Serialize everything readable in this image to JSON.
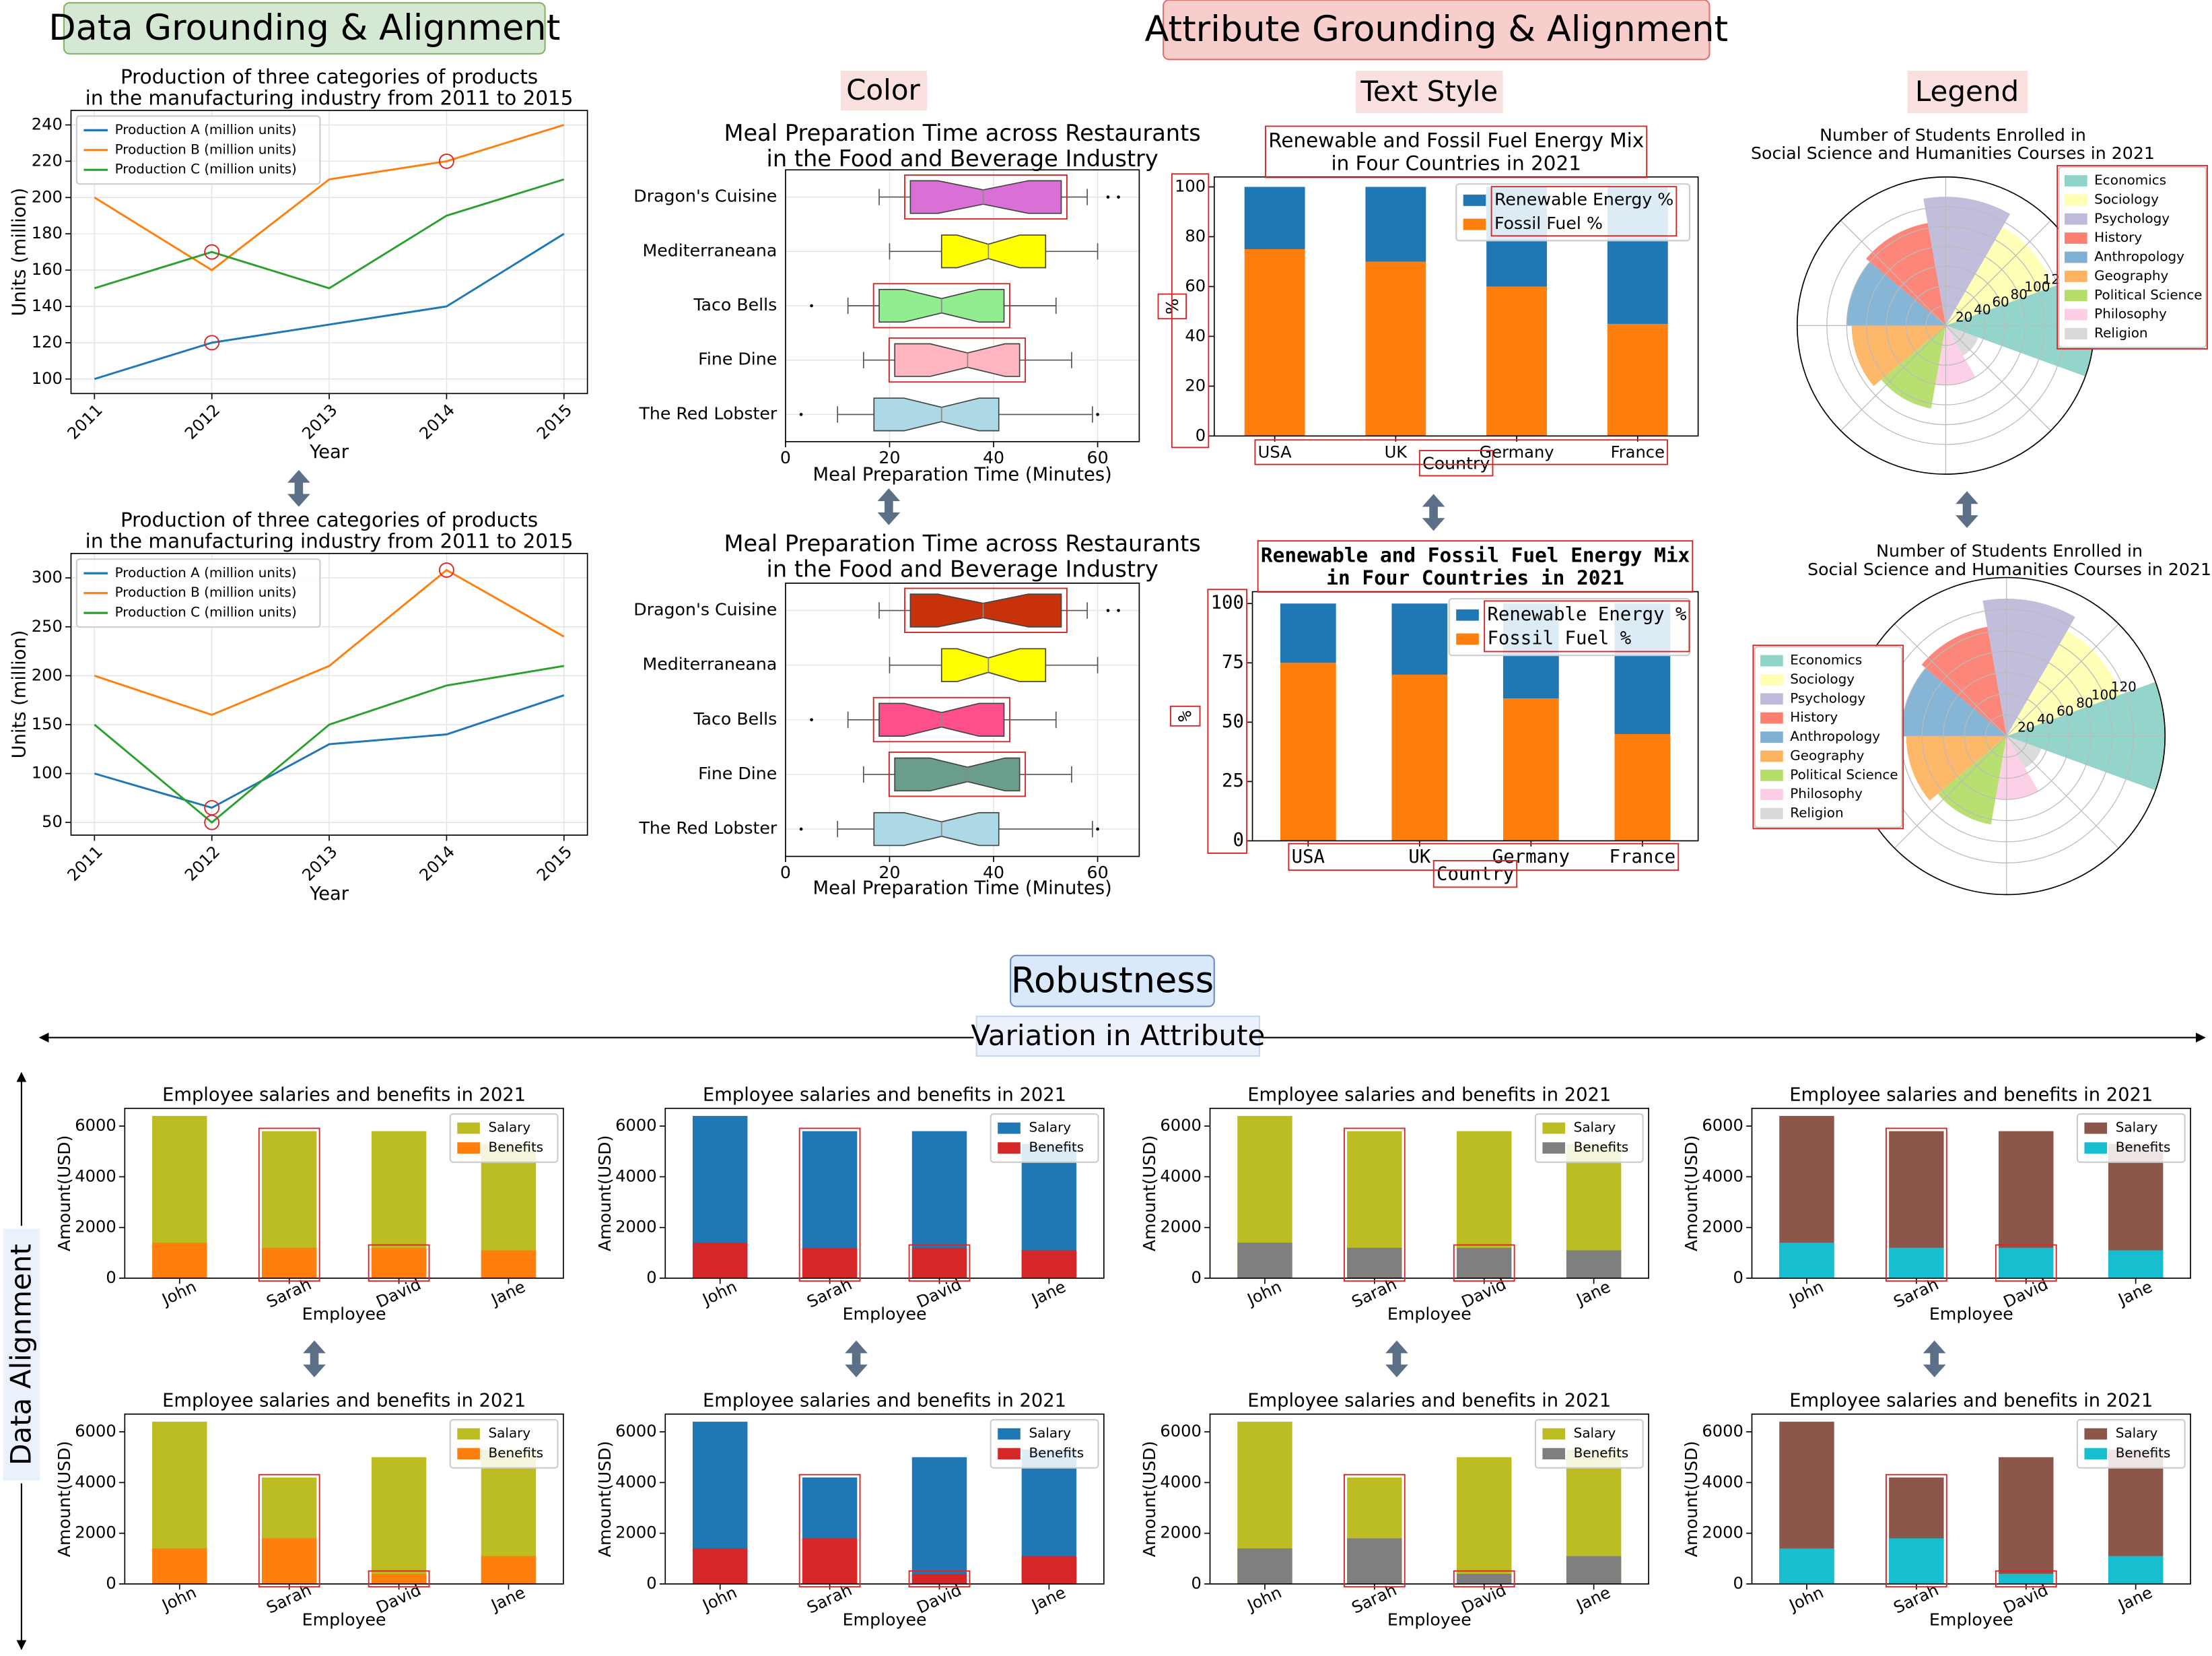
{
  "headings": {
    "data_grounding": "Data Grounding & Alignment",
    "attribute_grounding": "Attribute Grounding & Alignment",
    "color": "Color",
    "text_style": "Text Style",
    "legend": "Legend",
    "robustness": "Robustness",
    "variation": "Variation in Attribute",
    "data_alignment": "Data Alignment"
  },
  "chart_data": [
    {
      "type": "line",
      "title": [
        "Production of three categories of products",
        "in the manufacturing industry from 2011 to 2015"
      ],
      "x": [
        2011,
        2012,
        2013,
        2014,
        2015
      ],
      "xlim": [
        2010.8,
        2015.2
      ],
      "xticks": [
        2011,
        2012,
        2013,
        2014,
        2015
      ],
      "ylim": [
        92,
        248
      ],
      "yticks": [
        100,
        120,
        140,
        160,
        180,
        200,
        220,
        240
      ],
      "xlabel": "Year",
      "ylabel": "Units (million)",
      "grid": true,
      "legend": "upper left",
      "series": [
        {
          "name": "Production A (million units)",
          "color": "#1f77b4",
          "values": [
            100,
            120,
            130,
            140,
            180
          ]
        },
        {
          "name": "Production B (million units)",
          "color": "#ff7f0e",
          "values": [
            200,
            160,
            210,
            220,
            240
          ]
        },
        {
          "name": "Production C (million units)",
          "color": "#2ca02c",
          "values": [
            150,
            170,
            150,
            190,
            210
          ]
        }
      ]
    },
    {
      "type": "line",
      "title": [
        "Production of three categories of products",
        "in the manufacturing industry from 2011 to 2015"
      ],
      "x": [
        2011,
        2012,
        2013,
        2014,
        2015
      ],
      "xlim": [
        2010.8,
        2015.2
      ],
      "xticks": [
        2011,
        2012,
        2013,
        2014,
        2015
      ],
      "ylim": [
        37,
        325
      ],
      "yticks": [
        50,
        100,
        150,
        200,
        250,
        300
      ],
      "xlabel": "Year",
      "ylabel": "Units (million)",
      "grid": true,
      "legend": "upper left",
      "series": [
        {
          "name": "Production A (million units)",
          "color": "#1f77b4",
          "values": [
            100,
            65,
            130,
            140,
            180
          ]
        },
        {
          "name": "Production B (million units)",
          "color": "#ff7f0e",
          "values": [
            200,
            160,
            210,
            308,
            240
          ]
        },
        {
          "name": "Production C (million units)",
          "color": "#2ca02c",
          "values": [
            150,
            50,
            150,
            190,
            210
          ]
        }
      ]
    },
    {
      "type": "box",
      "title": [
        "Meal Preparation Time across Restaurants",
        "in the Food and Beverage Industry"
      ],
      "categories": [
        "Dragon's Cuisine",
        "Mediterraneana",
        "Taco Bells",
        "Fine Dine",
        "The Red Lobster"
      ],
      "colors": [
        "#da70d6",
        "#ffff00",
        "#90ee90",
        "#ffb6c1",
        "#add8e6"
      ],
      "xlim": [
        0,
        68
      ],
      "xticks": [
        0,
        20,
        40,
        60
      ],
      "xlabel": "Meal Preparation Time (Minutes)",
      "grid": true,
      "boxes": [
        {
          "whislo": 18,
          "q1": 24,
          "med": 38,
          "q3": 53,
          "whishi": 58,
          "fliers": [
            62,
            64
          ]
        },
        {
          "whislo": 20,
          "q1": 30,
          "med": 39,
          "q3": 50,
          "whishi": 60,
          "fliers": []
        },
        {
          "whislo": 12,
          "q1": 18,
          "med": 30,
          "q3": 42,
          "whishi": 52,
          "fliers": [
            5
          ]
        },
        {
          "whislo": 15,
          "q1": 21,
          "med": 35,
          "q3": 45,
          "whishi": 55,
          "fliers": []
        },
        {
          "whislo": 10,
          "q1": 17,
          "med": 30,
          "q3": 41,
          "whishi": 59,
          "fliers": [
            3,
            60
          ]
        }
      ]
    },
    {
      "type": "box",
      "title": [
        "Meal Preparation Time across Restaurants",
        "in the Food and Beverage Industry"
      ],
      "categories": [
        "Dragon's Cuisine",
        "Mediterraneana",
        "Taco Bells",
        "Fine Dine",
        "The Red Lobster"
      ],
      "colors": [
        "#c8320a",
        "#ffff00",
        "#ff4f8b",
        "#6a9e8b",
        "#add8e6"
      ],
      "xlim": [
        0,
        68
      ],
      "xticks": [
        0,
        20,
        40,
        60
      ],
      "xlabel": "Meal Preparation Time (Minutes)",
      "grid": true,
      "boxes": [
        {
          "whislo": 18,
          "q1": 24,
          "med": 38,
          "q3": 53,
          "whishi": 58,
          "fliers": [
            62,
            64
          ]
        },
        {
          "whislo": 20,
          "q1": 30,
          "med": 39,
          "q3": 50,
          "whishi": 60,
          "fliers": []
        },
        {
          "whislo": 12,
          "q1": 18,
          "med": 30,
          "q3": 42,
          "whishi": 52,
          "fliers": [
            5
          ]
        },
        {
          "whislo": 15,
          "q1": 21,
          "med": 35,
          "q3": 45,
          "whishi": 55,
          "fliers": []
        },
        {
          "whislo": 10,
          "q1": 17,
          "med": 30,
          "q3": 41,
          "whishi": 59,
          "fliers": [
            3,
            60
          ]
        }
      ]
    },
    {
      "type": "stacked_bar",
      "title": [
        "Renewable and Fossil Fuel Energy Mix",
        "in Four Countries in 2021"
      ],
      "categories": [
        "USA",
        "UK",
        "Germany",
        "France"
      ],
      "ylim": [
        0,
        104
      ],
      "yticks": [
        0,
        20,
        40,
        60,
        80,
        100
      ],
      "xlabel": "Country",
      "ylabel": "%",
      "grid": false,
      "legend": "upper right",
      "series": [
        {
          "name": "Renewable Energy %",
          "color": "#1f77b4",
          "values": [
            25,
            30,
            40,
            55
          ]
        },
        {
          "name": "Fossil Fuel %",
          "color": "#ff7f0e",
          "values": [
            75,
            70,
            60,
            45
          ]
        }
      ]
    },
    {
      "type": "stacked_bar",
      "title": [
        "Renewable and Fossil Fuel Energy Mix",
        "in Four Countries in 2021"
      ],
      "categories": [
        "USA",
        "UK",
        "Germany",
        "France"
      ],
      "ylim": [
        0,
        105
      ],
      "yticks": [
        0,
        25,
        50,
        75,
        100
      ],
      "xlabel": "Country",
      "ylabel": "%",
      "grid": false,
      "legend": "upper right",
      "series": [
        {
          "name": "Renewable Energy %",
          "color": "#1f77b4",
          "values": [
            25,
            30,
            40,
            55
          ]
        },
        {
          "name": "Fossil Fuel %",
          "color": "#ff7f0e",
          "values": [
            75,
            70,
            60,
            45
          ]
        }
      ]
    },
    {
      "type": "polar",
      "title": [
        "Number of Students Enrolled in",
        "Social Science and Humanities Courses in 2021"
      ],
      "categories": [
        "Economics",
        "Sociology",
        "Psychology",
        "History",
        "Anthropology",
        "Geography",
        "Political Science",
        "Philosophy",
        "Religion"
      ],
      "values": [
        150,
        115,
        130,
        105,
        100,
        95,
        85,
        60,
        35
      ],
      "colors": [
        "#8dd3c7",
        "#ffffb3",
        "#bebada",
        "#fb8072",
        "#80b1d3",
        "#fdb462",
        "#b3de69",
        "#fccde5",
        "#d9d9d9"
      ],
      "rlim": [
        0,
        150
      ],
      "rticks": [
        20,
        40,
        60,
        80,
        100,
        120
      ],
      "legend": "right"
    },
    {
      "type": "polar",
      "title": [
        "Number of Students Enrolled in",
        "Social Science and Humanities Courses in 2021"
      ],
      "categories": [
        "Economics",
        "Sociology",
        "Psychology",
        "History",
        "Anthropology",
        "Geography",
        "Political Science",
        "Philosophy",
        "Religion"
      ],
      "values": [
        150,
        115,
        130,
        105,
        100,
        95,
        85,
        60,
        35
      ],
      "colors": [
        "#8dd3c7",
        "#ffffb3",
        "#bebada",
        "#fb8072",
        "#80b1d3",
        "#fdb462",
        "#b3de69",
        "#fccde5",
        "#d9d9d9"
      ],
      "rlim": [
        0,
        150
      ],
      "rticks": [
        20,
        40,
        60,
        80,
        100,
        120
      ],
      "legend": "left"
    },
    {
      "type": "bar",
      "title": [
        "Employee salaries and benefits in 2021"
      ],
      "categories": [
        "John",
        "Sarah",
        "David",
        "Jane"
      ],
      "ylim": [
        0,
        6700
      ],
      "yticks": [
        0,
        2000,
        4000,
        6000
      ],
      "xlabel": "Employee",
      "ylabel": "Amount(USD)",
      "grid": false,
      "legend": "upper right",
      "series": [
        {
          "name": "Salary",
          "color": "#bcbd22",
          "values": [
            6400,
            5800,
            5800,
            5300
          ]
        },
        {
          "name": "Benefits",
          "color": "#ff7f0e",
          "values": [
            1400,
            1200,
            1200,
            1100
          ]
        }
      ]
    },
    {
      "type": "bar",
      "title": [
        "Employee salaries and benefits in 2021"
      ],
      "categories": [
        "John",
        "Sarah",
        "David",
        "Jane"
      ],
      "ylim": [
        0,
        6700
      ],
      "yticks": [
        0,
        2000,
        4000,
        6000
      ],
      "xlabel": "Employee",
      "ylabel": "Amount(USD)",
      "grid": false,
      "legend": "upper right",
      "series": [
        {
          "name": "Salary",
          "color": "#1f77b4",
          "values": [
            6400,
            5800,
            5800,
            5300
          ]
        },
        {
          "name": "Benefits",
          "color": "#d62728",
          "values": [
            1400,
            1200,
            1200,
            1100
          ]
        }
      ]
    },
    {
      "type": "bar",
      "title": [
        "Employee salaries and benefits in 2021"
      ],
      "categories": [
        "John",
        "Sarah",
        "David",
        "Jane"
      ],
      "ylim": [
        0,
        6700
      ],
      "yticks": [
        0,
        2000,
        4000,
        6000
      ],
      "xlabel": "Employee",
      "ylabel": "Amount(USD)",
      "grid": false,
      "legend": "upper right",
      "series": [
        {
          "name": "Salary",
          "color": "#bcbd22",
          "values": [
            6400,
            5800,
            5800,
            5300
          ]
        },
        {
          "name": "Benefits",
          "color": "#7f7f7f",
          "values": [
            1400,
            1200,
            1200,
            1100
          ]
        }
      ]
    },
    {
      "type": "bar",
      "title": [
        "Employee salaries and benefits in 2021"
      ],
      "categories": [
        "John",
        "Sarah",
        "David",
        "Jane"
      ],
      "ylim": [
        0,
        6700
      ],
      "yticks": [
        0,
        2000,
        4000,
        6000
      ],
      "xlabel": "Employee",
      "ylabel": "Amount(USD)",
      "grid": false,
      "legend": "upper right",
      "series": [
        {
          "name": "Salary",
          "color": "#8c564b",
          "values": [
            6400,
            5800,
            5800,
            5300
          ]
        },
        {
          "name": "Benefits",
          "color": "#17becf",
          "values": [
            1400,
            1200,
            1200,
            1100
          ]
        }
      ]
    },
    {
      "type": "bar",
      "title": [
        "Employee salaries and benefits in 2021"
      ],
      "categories": [
        "John",
        "Sarah",
        "David",
        "Jane"
      ],
      "ylim": [
        0,
        6700
      ],
      "yticks": [
        0,
        2000,
        4000,
        6000
      ],
      "xlabel": "Employee",
      "ylabel": "Amount(USD)",
      "grid": false,
      "legend": "upper right",
      "series": [
        {
          "name": "Salary",
          "color": "#bcbd22",
          "values": [
            6400,
            4200,
            5000,
            5300
          ]
        },
        {
          "name": "Benefits",
          "color": "#ff7f0e",
          "values": [
            1400,
            1800,
            400,
            1100
          ]
        }
      ]
    },
    {
      "type": "bar",
      "title": [
        "Employee salaries and benefits in 2021"
      ],
      "categories": [
        "John",
        "Sarah",
        "David",
        "Jane"
      ],
      "ylim": [
        0,
        6700
      ],
      "yticks": [
        0,
        2000,
        4000,
        6000
      ],
      "xlabel": "Employee",
      "ylabel": "Amount(USD)",
      "grid": false,
      "legend": "upper right",
      "series": [
        {
          "name": "Salary",
          "color": "#1f77b4",
          "values": [
            6400,
            4200,
            5000,
            5300
          ]
        },
        {
          "name": "Benefits",
          "color": "#d62728",
          "values": [
            1400,
            1800,
            400,
            1100
          ]
        }
      ]
    },
    {
      "type": "bar",
      "title": [
        "Employee salaries and benefits in 2021"
      ],
      "categories": [
        "John",
        "Sarah",
        "David",
        "Jane"
      ],
      "ylim": [
        0,
        6700
      ],
      "yticks": [
        0,
        2000,
        4000,
        6000
      ],
      "xlabel": "Employee",
      "ylabel": "Amount(USD)",
      "grid": false,
      "legend": "upper right",
      "series": [
        {
          "name": "Salary",
          "color": "#bcbd22",
          "values": [
            6400,
            4200,
            5000,
            5300
          ]
        },
        {
          "name": "Benefits",
          "color": "#7f7f7f",
          "values": [
            1400,
            1800,
            400,
            1100
          ]
        }
      ]
    },
    {
      "type": "bar",
      "title": [
        "Employee salaries and benefits in 2021"
      ],
      "categories": [
        "John",
        "Sarah",
        "David",
        "Jane"
      ],
      "ylim": [
        0,
        6700
      ],
      "yticks": [
        0,
        2000,
        4000,
        6000
      ],
      "xlabel": "Employee",
      "ylabel": "Amount(USD)",
      "grid": false,
      "legend": "upper right",
      "series": [
        {
          "name": "Salary",
          "color": "#8c564b",
          "values": [
            6400,
            4200,
            5000,
            5300
          ]
        },
        {
          "name": "Benefits",
          "color": "#17becf",
          "values": [
            1400,
            1800,
            400,
            1100
          ]
        }
      ]
    }
  ]
}
